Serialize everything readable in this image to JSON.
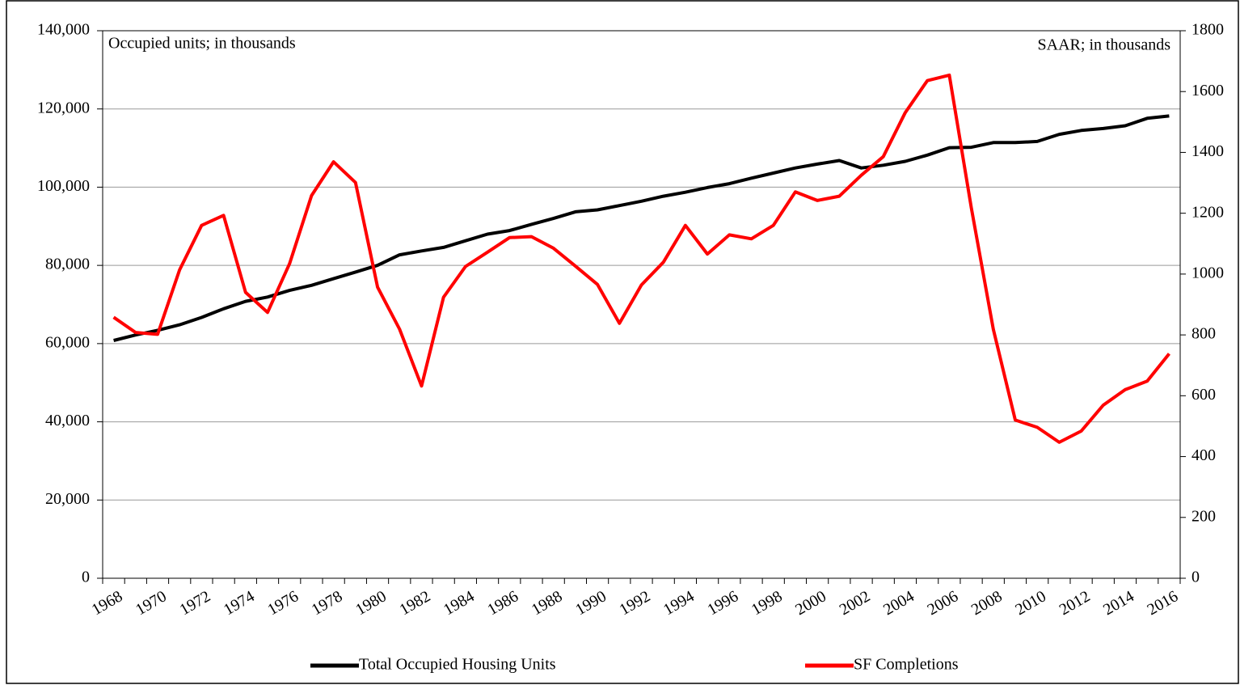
{
  "chart_data": {
    "type": "line",
    "annotations": [
      "Occupied units; in thousands",
      "SAAR; in thousands"
    ],
    "categories": [
      "1968",
      null,
      "1970",
      null,
      "1972",
      null,
      "1974",
      null,
      "1976",
      null,
      "1978",
      null,
      "1980",
      null,
      "1982",
      null,
      "1984",
      null,
      "1986",
      null,
      "1988",
      null,
      "1990",
      null,
      "1992",
      null,
      "1994",
      null,
      "1996",
      null,
      "1998",
      null,
      "2000",
      null,
      "2002",
      null,
      "2004",
      null,
      "2006",
      null,
      "2008",
      null,
      "2010",
      null,
      "2012",
      null,
      "2014",
      null,
      "2016"
    ],
    "series": [
      {
        "name": "Total Occupied Housing Units",
        "color": "#000000",
        "axis": "y",
        "values": [
          60800,
          62200,
          63400,
          64800,
          66700,
          68900,
          70800,
          71900,
          73600,
          74900,
          76600,
          78300,
          80000,
          82700,
          83700,
          84600,
          86300,
          88000,
          88900,
          90500,
          92000,
          93700,
          94200,
          95300,
          96400,
          97700,
          98700,
          99900,
          100900,
          102300,
          103600,
          104900,
          105900,
          106800,
          104900,
          105600,
          106600,
          108200,
          110100,
          110200,
          111400,
          111400,
          111700,
          113500,
          114500,
          115000,
          115700,
          117600,
          118200
        ]
      },
      {
        "name": "SF Completions",
        "color": "#ff0000",
        "axis": "y2",
        "values": [
          858,
          808,
          802,
          1014,
          1160,
          1193,
          940,
          874,
          1034,
          1258,
          1369,
          1301,
          957,
          819,
          632,
          924,
          1025,
          1072,
          1120,
          1123,
          1085,
          1026,
          966,
          838,
          964,
          1039,
          1160,
          1066,
          1129,
          1116,
          1160,
          1270,
          1242,
          1256,
          1325,
          1386,
          1531,
          1636,
          1654,
          1218,
          819,
          520,
          496,
          447,
          484,
          569,
          620,
          648,
          738
        ]
      }
    ],
    "ylim": [
      0,
      140000
    ],
    "yticks": [
      {
        "value": 0,
        "label": "0"
      },
      {
        "value": 20000,
        "label": "20,000"
      },
      {
        "value": 40000,
        "label": "40,000"
      },
      {
        "value": 60000,
        "label": "60,000"
      },
      {
        "value": 80000,
        "label": "80,000"
      },
      {
        "value": 100000,
        "label": "100,000"
      },
      {
        "value": 120000,
        "label": "120,000"
      },
      {
        "value": 140000,
        "label": "140,000"
      }
    ],
    "y2lim": [
      0,
      1800
    ],
    "y2ticks": [
      0,
      200,
      400,
      600,
      800,
      1000,
      1200,
      1400,
      1600,
      1800
    ],
    "grid": true,
    "legend": "bottom"
  }
}
